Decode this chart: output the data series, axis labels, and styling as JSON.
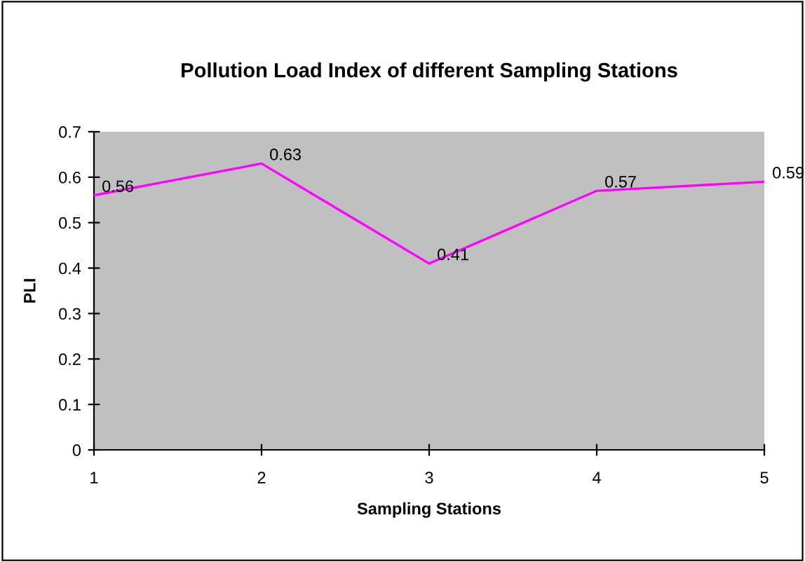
{
  "chart_data": {
    "type": "line",
    "title": "Pollution Load Index of different Sampling Stations",
    "xlabel": "Sampling Stations",
    "ylabel": "PLI",
    "x": [
      1,
      2,
      3,
      4,
      5
    ],
    "series": [
      {
        "color": "#ff00ff",
        "values": [
          0.56,
          0.63,
          0.41,
          0.57,
          0.59
        ]
      }
    ],
    "xlim": [
      1,
      5
    ],
    "xticks": [
      1,
      2,
      3,
      4,
      5
    ],
    "ylim": [
      0,
      0.7
    ],
    "yticks": [
      0,
      0.1,
      0.2,
      0.3,
      0.4,
      0.5,
      0.6,
      0.7
    ],
    "data_labels": true,
    "grid": false,
    "legend": false,
    "marker": "none",
    "line_style": "solid"
  }
}
